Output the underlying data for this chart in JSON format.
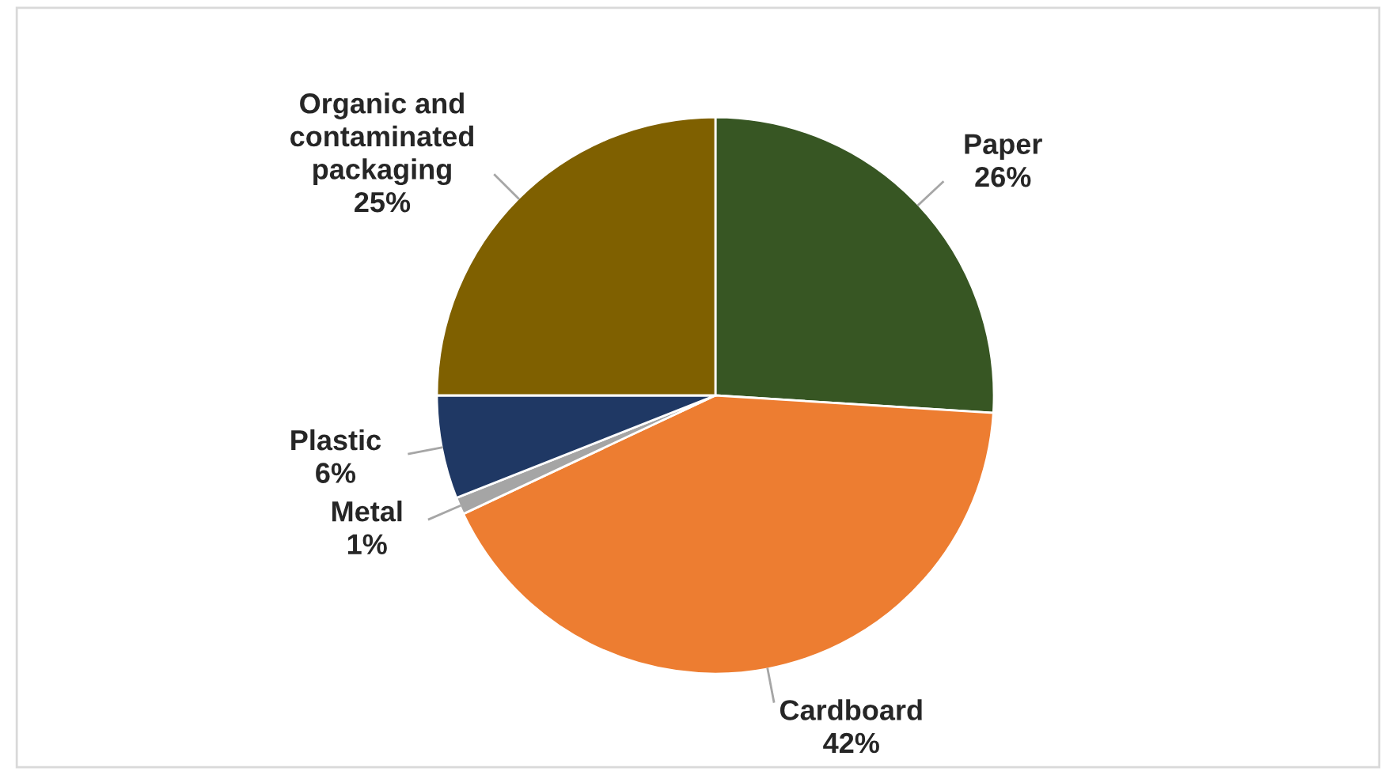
{
  "chart_data": {
    "type": "pie",
    "categories": [
      "Paper",
      "Cardboard",
      "Metal",
      "Plastic",
      "Organic and\ncontaminated\npackaging"
    ],
    "values": [
      26,
      42,
      1,
      6,
      25
    ],
    "colors": [
      "#375623",
      "#ed7d31",
      "#a5a5a5",
      "#1f3864",
      "#7f6000"
    ],
    "value_labels": [
      "26%",
      "42%",
      "1%",
      "6%",
      "25%"
    ],
    "legend": false
  }
}
